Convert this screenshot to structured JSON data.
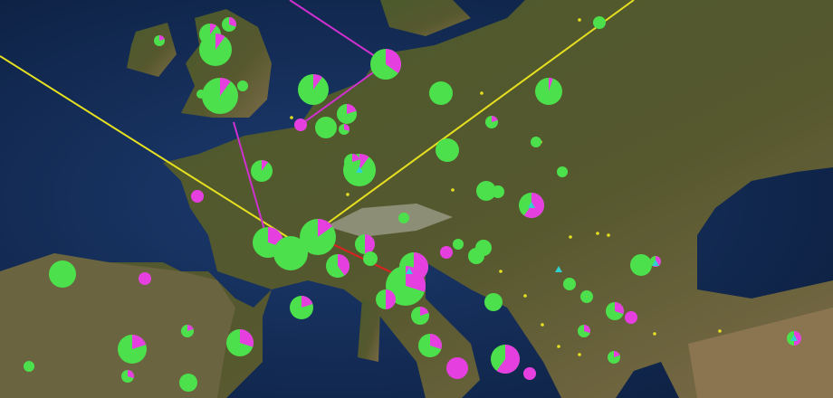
{
  "map": {
    "colors": {
      "sea": "#16305e",
      "deep_sea": "#0b1f3f",
      "land": "#4f5a2a",
      "land_dry": "#7a6a45",
      "pie_primary": "#4ce04c",
      "pie_secondary": "#e63fe0",
      "route_yellow": "#e6e020",
      "route_magenta": "#d030d0",
      "route_red": "#e02020",
      "small_point": "#e6e020",
      "triangle_marker": "#30d0d0"
    },
    "markers": [
      {
        "share": 0.1
      },
      {
        "share": 0.3
      },
      {
        "share": 0.2
      },
      {
        "share": 0.1
      },
      {
        "share": 0.1
      },
      {
        "share": 0
      },
      {
        "share": 0
      },
      {
        "share": 0.35
      },
      {
        "share": 0.1
      },
      {
        "share": 0
      },
      {
        "share": 0.05
      },
      {
        "share": 0
      },
      {
        "share": 1
      },
      {
        "share": 0
      },
      {
        "share": 0.2
      },
      {
        "share": 0.3
      },
      {
        "share": 0.2
      },
      {
        "share": 0
      },
      {
        "share": 0
      },
      {
        "share": 0.1
      },
      {
        "share": 0.1
      },
      {
        "share": 0.2
      },
      {
        "share": 1
      },
      {
        "share": 0
      },
      {
        "share": 0
      },
      {
        "share": 0.6
      },
      {
        "share": 0
      },
      {
        "share": 0
      },
      {
        "share": 0.3
      },
      {
        "share": 0
      },
      {
        "share": 0.15
      },
      {
        "share": 0.4
      },
      {
        "share": 0.5
      },
      {
        "share": 0
      },
      {
        "share": 1
      },
      {
        "share": 0
      },
      {
        "share": 0
      },
      {
        "share": 0
      },
      {
        "share": 0.6
      },
      {
        "share": 0.3
      },
      {
        "share": 0.5
      },
      {
        "share": 0.2
      },
      {
        "share": 0
      },
      {
        "share": 0
      },
      {
        "share": 0
      },
      {
        "share": 0
      },
      {
        "share": 0.6
      },
      {
        "share": 0.3
      },
      {
        "share": 1
      },
      {
        "share": 0.3
      },
      {
        "share": 0
      },
      {
        "share": 1
      },
      {
        "share": 0.2
      },
      {
        "share": 0.2
      },
      {
        "share": 0.3
      },
      {
        "share": 0.2
      },
      {
        "share": 0.6
      },
      {
        "share": 1
      },
      {
        "share": 0.3
      },
      {
        "share": 1
      },
      {
        "share": 0
      },
      {
        "share": 0.3
      },
      {
        "share": 0
      },
      {
        "share": 0.2
      },
      {
        "share": 0.5
      }
    ]
  }
}
